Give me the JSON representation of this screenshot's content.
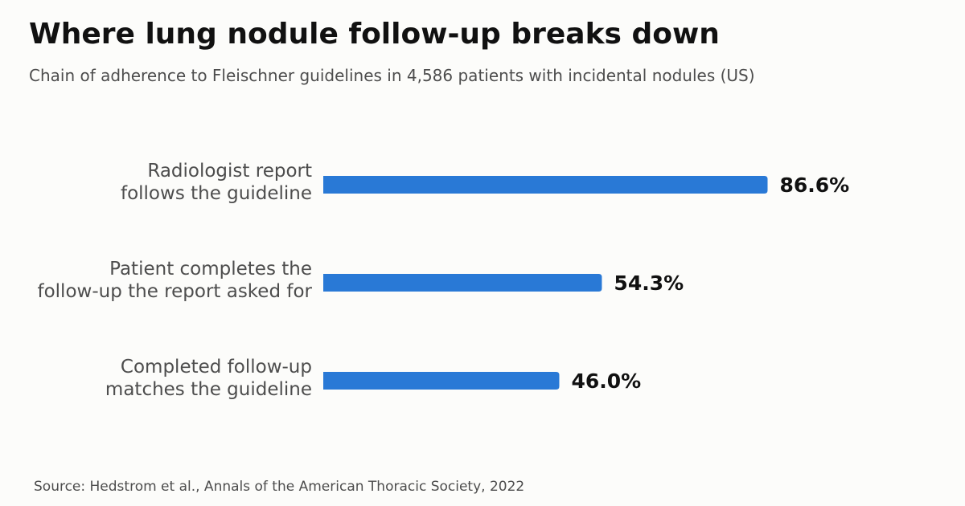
{
  "title": "Where lung nodule follow-up breaks down",
  "subtitle": "Chain of adherence to Fleischner guidelines in 4,586 patients with incidental nodules (US)",
  "source": "Source: Hedstrom et al., Annals of the American Thoracic Society, 2022",
  "chart_data": {
    "type": "bar",
    "orientation": "horizontal",
    "categories": [
      [
        "Radiologist report",
        "follows the guideline"
      ],
      [
        "Patient completes the",
        "follow-up the report asked for"
      ],
      [
        "Completed follow-up",
        "matches the guideline"
      ]
    ],
    "values": [
      86.6,
      54.3,
      46.0
    ],
    "value_labels": [
      "86.6%",
      "54.3%",
      "46.0%"
    ],
    "xlim": [
      0,
      100
    ],
    "grid": false,
    "bar_color": "#2979d6"
  }
}
